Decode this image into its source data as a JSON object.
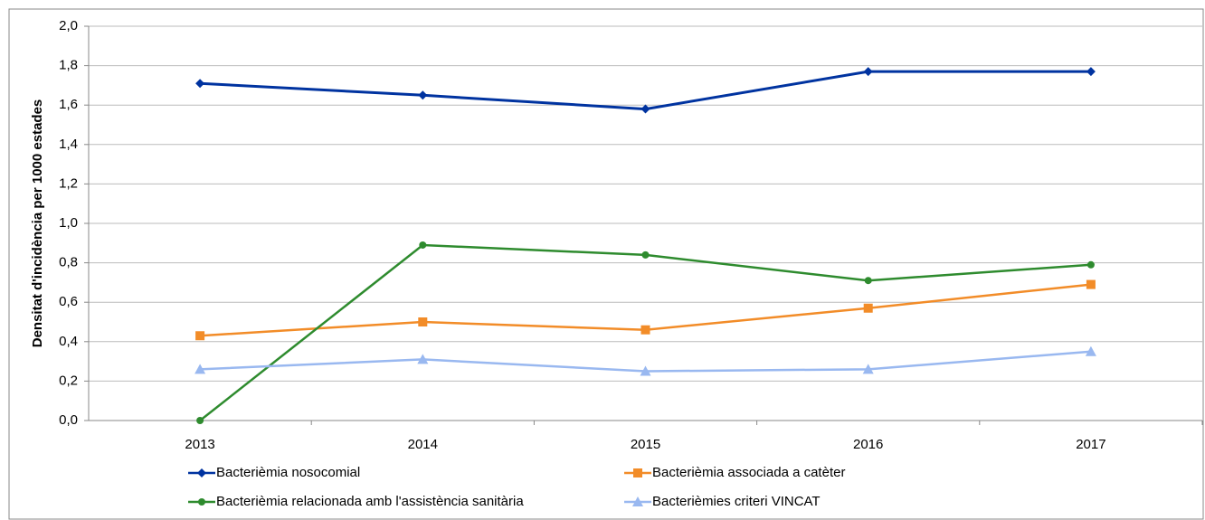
{
  "chart_data": {
    "type": "line",
    "ylabel": "Densitat d'incidència per 1000 estades",
    "categories": [
      "2013",
      "2014",
      "2015",
      "2016",
      "2017"
    ],
    "series": [
      {
        "name": "Bacterièmia nosocomial",
        "color": "#0033a0",
        "marker": "diamond",
        "values": [
          1.71,
          1.65,
          1.58,
          1.77,
          1.77
        ]
      },
      {
        "name": "Bacterièmia associada a catèter",
        "color": "#f28c28",
        "marker": "square",
        "values": [
          0.43,
          0.5,
          0.46,
          0.57,
          0.69
        ]
      },
      {
        "name": "Bacterièmia relacionada amb l'assistència sanitària",
        "color": "#2e8b2e",
        "marker": "circle",
        "values": [
          0.0,
          0.89,
          0.84,
          0.71,
          0.79
        ]
      },
      {
        "name": "Bacterièmies criteri VINCAT",
        "color": "#99b8f0",
        "marker": "triangle",
        "values": [
          0.26,
          0.31,
          0.25,
          0.26,
          0.35
        ]
      }
    ],
    "ylim": [
      0,
      2
    ],
    "yticks": [
      {
        "value": 0,
        "label": "0,0"
      },
      {
        "value": 0.2,
        "label": "0,2"
      },
      {
        "value": 0.4,
        "label": "0,4"
      },
      {
        "value": 0.6,
        "label": "0,6"
      },
      {
        "value": 0.8,
        "label": "0,8"
      },
      {
        "value": 1,
        "label": "1,0"
      },
      {
        "value": 1.2,
        "label": "1,2"
      },
      {
        "value": 1.4,
        "label": "1,4"
      },
      {
        "value": 1.6,
        "label": "1,6"
      },
      {
        "value": 1.8,
        "label": "1,8"
      },
      {
        "value": 2,
        "label": "2,0"
      }
    ],
    "grid": true,
    "legend": "bottom"
  }
}
